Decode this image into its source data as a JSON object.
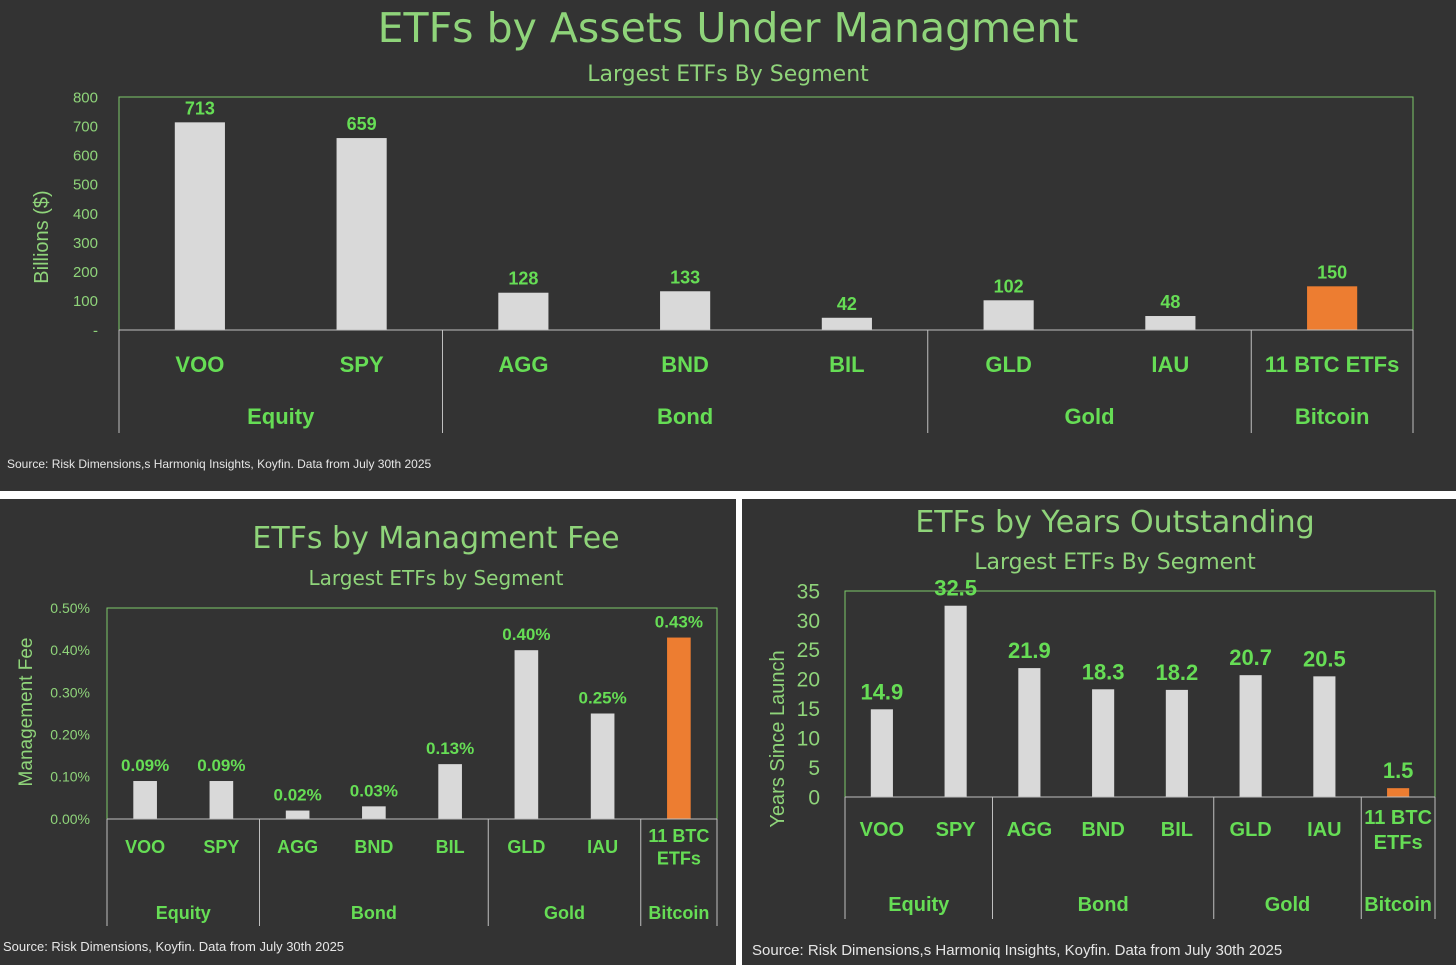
{
  "colors": {
    "background": "#333333",
    "accent": "#8fd47a",
    "label_green": "#66dd55",
    "bar": "#d9d9d9",
    "highlight": "#ed7d31",
    "frame": "#7cc96a",
    "source_text": "#e6e6e6"
  },
  "top": {
    "title": "ETFs by Assets Under Managment",
    "subtitle": "Largest ETFs By Segment",
    "source": "Source: Risk Dimensions,s Harmoniq Insights, Koyfin. Data from July 30th 2025"
  },
  "bottom_left": {
    "title": "ETFs by Managment Fee",
    "subtitle": "Largest ETFs by Segment",
    "source": "Source: Risk Dimensions, Koyfin. Data from July 30th 2025"
  },
  "bottom_right": {
    "title": "ETFs by Years Outstanding",
    "subtitle": "Largest ETFs By Segment",
    "source": "Source: Risk Dimensions,s Harmoniq Insights, Koyfin. Data from July 30th 2025"
  },
  "chart_data": [
    {
      "type": "bar",
      "title": "ETFs by Assets Under Managment",
      "subtitle": "Largest ETFs By Segment",
      "ylabel": "Billions ($)",
      "ylim": [
        0,
        800
      ],
      "yticks": [
        "-",
        "100",
        "200",
        "300",
        "400",
        "500",
        "600",
        "700",
        "800"
      ],
      "categories": [
        "VOO",
        "SPY",
        "AGG",
        "BND",
        "BIL",
        "GLD",
        "IAU",
        "11 BTC ETFs"
      ],
      "groups": [
        {
          "name": "Equity",
          "count": 2
        },
        {
          "name": "Bond",
          "count": 3
        },
        {
          "name": "Gold",
          "count": 2
        },
        {
          "name": "Bitcoin",
          "count": 1
        }
      ],
      "values": [
        713,
        659,
        128,
        133,
        42,
        102,
        48,
        150
      ],
      "data_labels": [
        "713",
        "659",
        "128",
        "133",
        "42",
        "102",
        "48",
        "150"
      ],
      "highlight_index": 7
    },
    {
      "type": "bar",
      "title": "ETFs by Managment Fee",
      "subtitle": "Largest ETFs by Segment",
      "ylabel": "Management Fee",
      "ylim": [
        0,
        0.5
      ],
      "yticks": [
        "0.00%",
        "0.10%",
        "0.20%",
        "0.30%",
        "0.40%",
        "0.50%"
      ],
      "categories": [
        "VOO",
        "SPY",
        "AGG",
        "BND",
        "BIL",
        "GLD",
        "IAU",
        "11 BTC ETFs"
      ],
      "groups": [
        {
          "name": "Equity",
          "count": 2
        },
        {
          "name": "Bond",
          "count": 3
        },
        {
          "name": "Gold",
          "count": 2
        },
        {
          "name": "Bitcoin",
          "count": 1
        }
      ],
      "values": [
        0.09,
        0.09,
        0.02,
        0.03,
        0.13,
        0.4,
        0.25,
        0.43
      ],
      "data_labels": [
        "0.09%",
        "0.09%",
        "0.02%",
        "0.03%",
        "0.13%",
        "0.40%",
        "0.25%",
        "0.43%"
      ],
      "highlight_index": 7
    },
    {
      "type": "bar",
      "title": "ETFs by Years Outstanding",
      "subtitle": "Largest ETFs By Segment",
      "ylabel": "Years Since Launch",
      "ylim": [
        0,
        35
      ],
      "yticks": [
        "0",
        "5",
        "10",
        "15",
        "20",
        "25",
        "30",
        "35"
      ],
      "categories": [
        "VOO",
        "SPY",
        "AGG",
        "BND",
        "BIL",
        "GLD",
        "IAU",
        "11 BTC ETFs"
      ],
      "groups": [
        {
          "name": "Equity",
          "count": 2
        },
        {
          "name": "Bond",
          "count": 3
        },
        {
          "name": "Gold",
          "count": 2
        },
        {
          "name": "Bitcoin",
          "count": 1
        }
      ],
      "values": [
        14.9,
        32.5,
        21.9,
        18.3,
        18.2,
        20.7,
        20.5,
        1.5
      ],
      "data_labels": [
        "14.9",
        "32.5",
        "21.9",
        "18.3",
        "18.2",
        "20.7",
        "20.5",
        "1.5"
      ],
      "highlight_index": 7
    }
  ]
}
